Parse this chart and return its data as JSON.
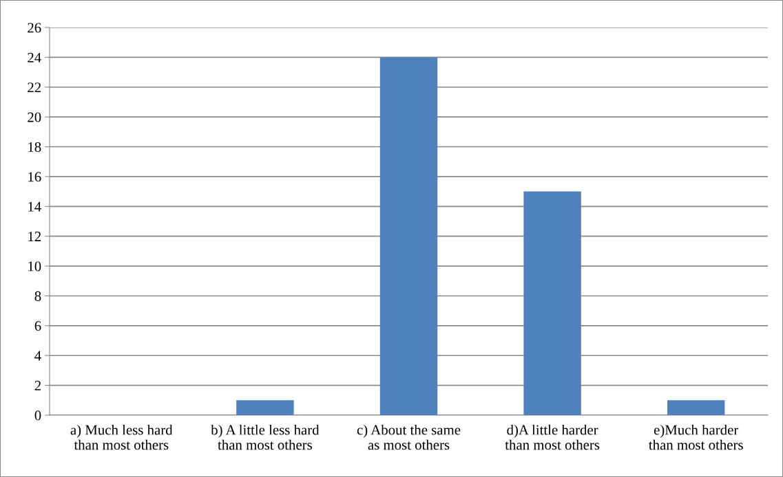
{
  "chart_data": {
    "type": "bar",
    "categories": [
      "a) Much less hard\nthan most others",
      "b) A little less hard\nthan most others",
      "c) About the same\nas most others",
      "d)A little harder\nthan most others",
      "e)Much harder\nthan most others"
    ],
    "values": [
      0,
      1,
      24,
      15,
      1
    ],
    "color": "#4f81bd",
    "ylim": [
      0,
      26
    ],
    "yticks": [
      0,
      2,
      4,
      6,
      8,
      10,
      12,
      14,
      16,
      18,
      20,
      22,
      24,
      26
    ],
    "grid": "y",
    "legend": false
  }
}
